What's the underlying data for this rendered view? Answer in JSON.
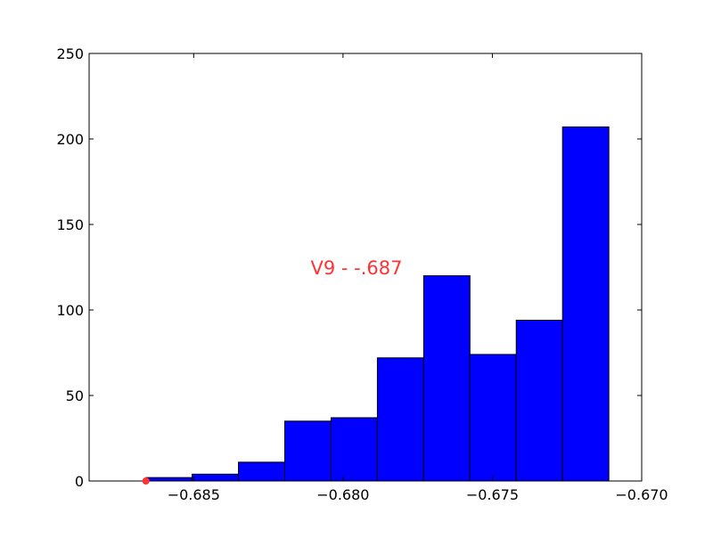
{
  "chart_data": {
    "type": "bar",
    "subtype": "histogram",
    "title": "",
    "xlabel": "",
    "ylabel": "",
    "xlim": [
      -0.6885,
      -0.67
    ],
    "ylim": [
      0,
      250
    ],
    "grid": false,
    "legend": false,
    "x_ticks": [
      -0.685,
      -0.68,
      -0.675,
      -0.67
    ],
    "x_tick_labels": [
      "−0.685",
      "−0.680",
      "−0.675",
      "−0.670"
    ],
    "y_ticks": [
      0,
      50,
      100,
      150,
      200,
      250
    ],
    "y_tick_labels": [
      "0",
      "50",
      "100",
      "150",
      "200",
      "250"
    ],
    "bin_edges": [
      -0.6866,
      -0.68505,
      -0.6835,
      -0.68195,
      -0.6804,
      -0.67885,
      -0.6773,
      -0.67575,
      -0.6742,
      -0.67265,
      -0.6711
    ],
    "values": [
      2,
      4,
      11,
      35,
      37,
      72,
      120,
      74,
      94,
      207
    ],
    "bar_color": "#0000ff",
    "edge_color": "#000000",
    "annotation": {
      "text": "V9 - -.687",
      "color": "#ff3333"
    },
    "marker": {
      "x": -0.6866,
      "y": 0,
      "color": "#ff3333"
    }
  }
}
